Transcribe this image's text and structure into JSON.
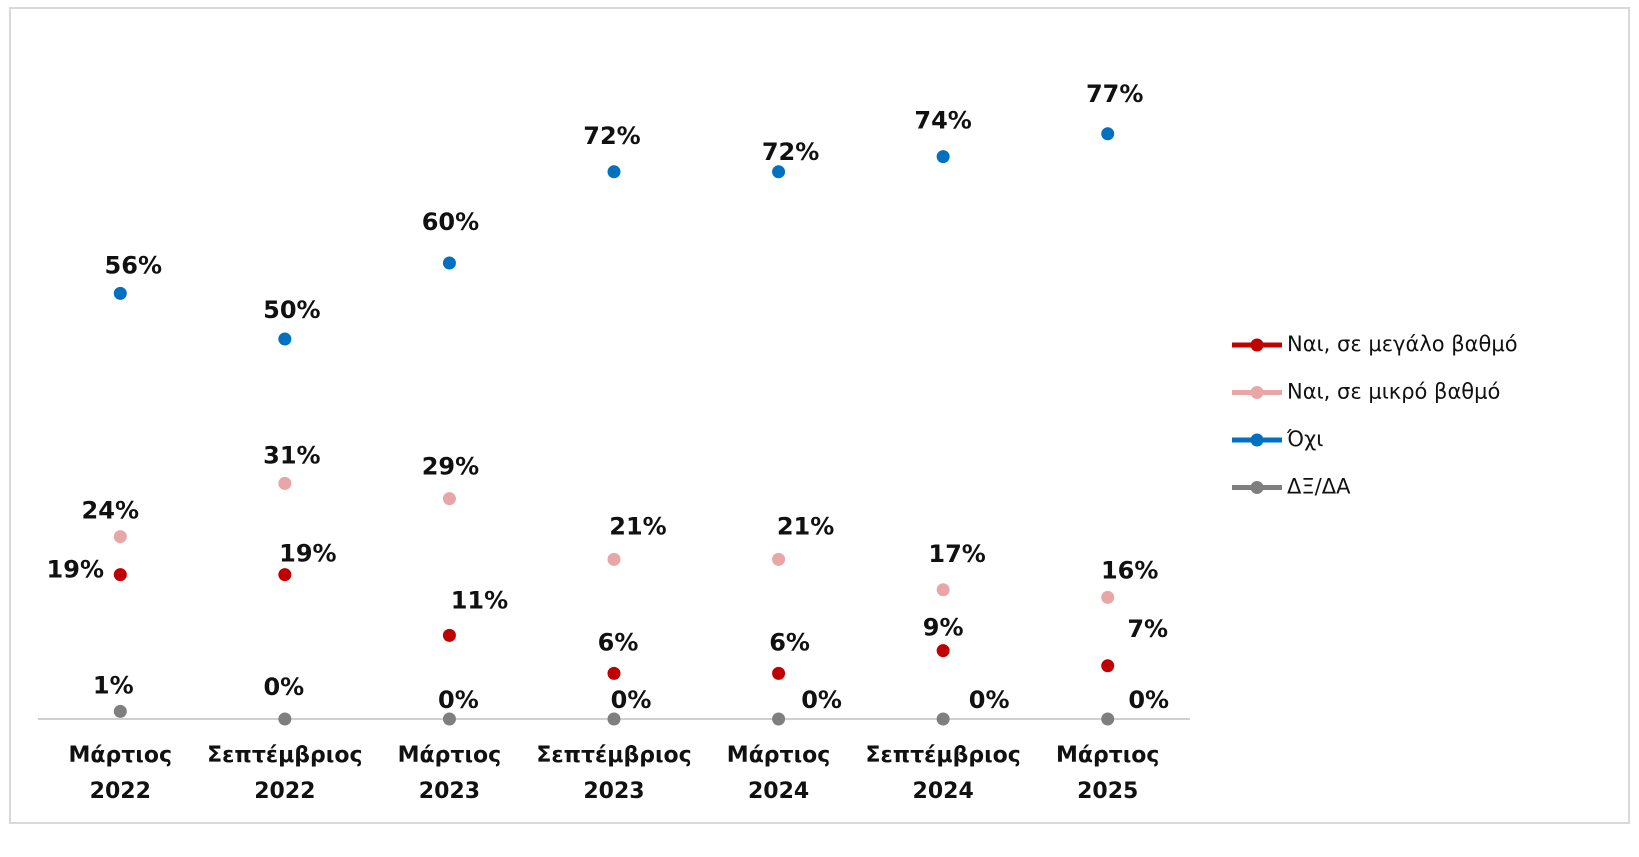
{
  "chart_data": {
    "type": "line",
    "categories": [
      "Μάρτιος 2022",
      "Σεπτέμβριος 2022",
      "Μάρτιος 2023",
      "Σεπτέμβριος 2023",
      "Μάρτιος 2024",
      "Σεπτέμβριος 2024",
      "Μάρτιος 2025"
    ],
    "series": [
      {
        "name": "Ναι, σε μεγάλο βαθμό",
        "color": "#c00000",
        "values": [
          19,
          19,
          11,
          6,
          6,
          9,
          7
        ],
        "value_labels": [
          "19%",
          "19%",
          "11%",
          "6%",
          "6%",
          "9%",
          "7%"
        ]
      },
      {
        "name": "Ναι, σε μικρό βαθμό",
        "color": "#e8a6a6",
        "values": [
          24,
          31,
          29,
          21,
          21,
          17,
          16
        ],
        "value_labels": [
          "24%",
          "31%",
          "29%",
          "21%",
          "21%",
          "17%",
          "16%"
        ]
      },
      {
        "name": "Όχι",
        "color": "#0070c0",
        "values": [
          56,
          50,
          60,
          72,
          72,
          74,
          77
        ],
        "value_labels": [
          "56%",
          "50%",
          "60%",
          "72%",
          "72%",
          "74%",
          "77%"
        ]
      },
      {
        "name": "ΔΞ/ΔΑ",
        "color": "#7f7f7f",
        "values": [
          1,
          0,
          0,
          0,
          0,
          0,
          0
        ],
        "value_labels": [
          "1%",
          "0%",
          "0%",
          "0%",
          "0%",
          "0%",
          "0%"
        ]
      }
    ],
    "ylim": [
      0,
      90
    ],
    "legend": "right"
  }
}
